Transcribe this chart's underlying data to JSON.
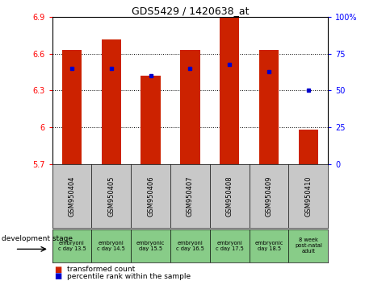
{
  "title": "GDS5429 / 1420638_at",
  "samples": [
    "GSM950404",
    "GSM950405",
    "GSM950406",
    "GSM950407",
    "GSM950408",
    "GSM950409",
    "GSM950410"
  ],
  "transformed_count": [
    6.63,
    6.72,
    6.42,
    6.63,
    6.9,
    6.63,
    5.98
  ],
  "percentile_rank": [
    65,
    65,
    60,
    65,
    68,
    63,
    50
  ],
  "dev_stage": [
    "embryoni\nc day 13.5",
    "embryoni\nc day 14.5",
    "embryonic\nday 15.5",
    "embryoni\nc day 16.5",
    "embryoni\nc day 17.5",
    "embryonic\nday 18.5",
    "8 week\npost-natal\nadult"
  ],
  "ymin": 5.7,
  "ymax": 6.9,
  "yticks_left": [
    5.7,
    6.0,
    6.3,
    6.6,
    6.9
  ],
  "ytick_labels_left": [
    "5.7",
    "6",
    "6.3",
    "6.6",
    "6.9"
  ],
  "right_yticks": [
    0,
    25,
    50,
    75,
    100
  ],
  "right_ytick_labels": [
    "0",
    "25",
    "50",
    "75",
    "100%"
  ],
  "bar_color": "#cc2200",
  "dot_color": "#0000cc",
  "bar_width": 0.5,
  "plot_bg": "#ffffff",
  "sample_bg": "#c8c8c8",
  "dev_bg": "#88cc88",
  "legend_bar_label": "transformed count",
  "legend_dot_label": "percentile rank within the sample",
  "dev_stage_label": "development stage"
}
